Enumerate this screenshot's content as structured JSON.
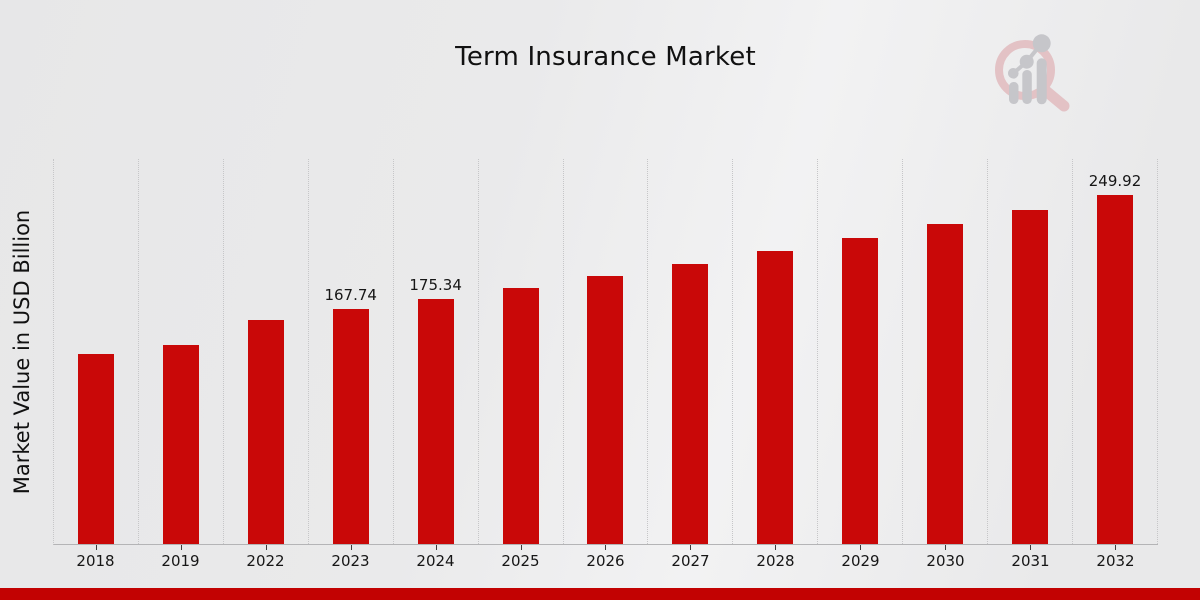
{
  "header": {
    "title": "Term Insurance Market"
  },
  "y_axis": {
    "label": "Market Value in USD Billion"
  },
  "icons": {
    "watermark": "magnifier-growth-chart-icon"
  },
  "colors": {
    "bar": "#c90808",
    "bottom_strip": "#c20202",
    "gridline": "#c6c6c8",
    "axis_line": "#b4b4b6",
    "text": "#161616",
    "watermark_ring_pink": "#e3c2c5",
    "watermark_gray": "#c6c6ca"
  },
  "chart_data": {
    "type": "bar",
    "title": "Term Insurance Market",
    "xlabel": "",
    "ylabel": "Market Value in USD Billion",
    "categories": [
      "2018",
      "2019",
      "2022",
      "2023",
      "2024",
      "2025",
      "2026",
      "2027",
      "2028",
      "2029",
      "2030",
      "2031",
      "2032"
    ],
    "values": [
      135.9,
      142.1,
      160.5,
      167.74,
      175.34,
      183.28,
      191.58,
      200.26,
      209.33,
      218.81,
      228.72,
      239.08,
      249.92
    ],
    "data_labels": {
      "2023": "167.74",
      "2024": "175.34",
      "2032": "249.92"
    },
    "ylim": [
      0,
      276
    ],
    "grid": "vertical-dotted",
    "legend": "none",
    "bar_color": "#c90808",
    "notes": "values for unlabeled bars estimated from bar heights"
  }
}
